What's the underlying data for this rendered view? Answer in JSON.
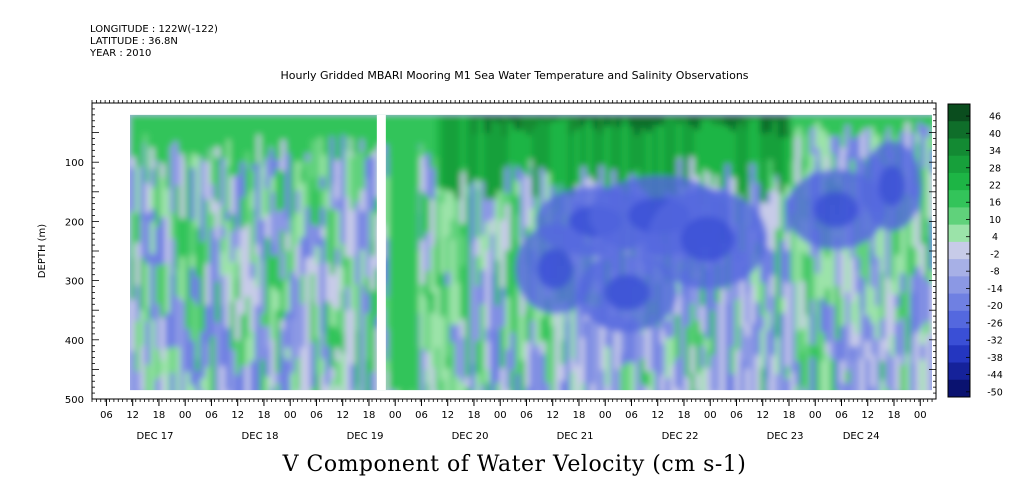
{
  "header": {
    "longitude": "LONGITUDE : 122W(-122)",
    "latitude": "LATITUDE : 36.8N",
    "year": "YEAR : 2010"
  },
  "chart_data": {
    "type": "heatmap",
    "title": "Hourly Gridded MBARI Mooring M1 Sea Water Temperature and Salinity Observations",
    "variable_label": "V Component of Water Velocity (cm s-1)",
    "ylabel": "DEPTH (m)",
    "y_axis": {
      "reversed": true,
      "range": [
        0,
        500
      ],
      "ticks": [
        100,
        200,
        300,
        400,
        500
      ]
    },
    "x_axis": {
      "hour_ticks": [
        "06",
        "12",
        "18",
        "00",
        "06",
        "12",
        "18",
        "00",
        "06",
        "12",
        "18",
        "00",
        "06",
        "12",
        "18",
        "00",
        "06",
        "12",
        "18",
        "00",
        "06",
        "12",
        "18",
        "00",
        "06",
        "12",
        "18",
        "00",
        "06",
        "12",
        "18",
        "00"
      ],
      "day_labels": [
        "DEC 17",
        "DEC 18",
        "DEC 19",
        "DEC 20",
        "DEC 21",
        "DEC 22",
        "DEC 23",
        "DEC 24"
      ]
    },
    "colorbar": {
      "levels": [
        46,
        40,
        34,
        28,
        22,
        16,
        10,
        4,
        -2,
        -8,
        -14,
        -20,
        -26,
        -32,
        -38,
        -44,
        -50
      ],
      "colors_top_to_bottom": [
        "#0a4d1e",
        "#0f6e2a",
        "#138a33",
        "#17a03b",
        "#1db545",
        "#33c45a",
        "#60d27b",
        "#9be3a9",
        "#c7cbe8",
        "#a7b0e6",
        "#8b98e4",
        "#6f80e2",
        "#5468df",
        "#3a4fd6",
        "#2436c0",
        "#15229a",
        "#0a1270"
      ]
    }
  }
}
